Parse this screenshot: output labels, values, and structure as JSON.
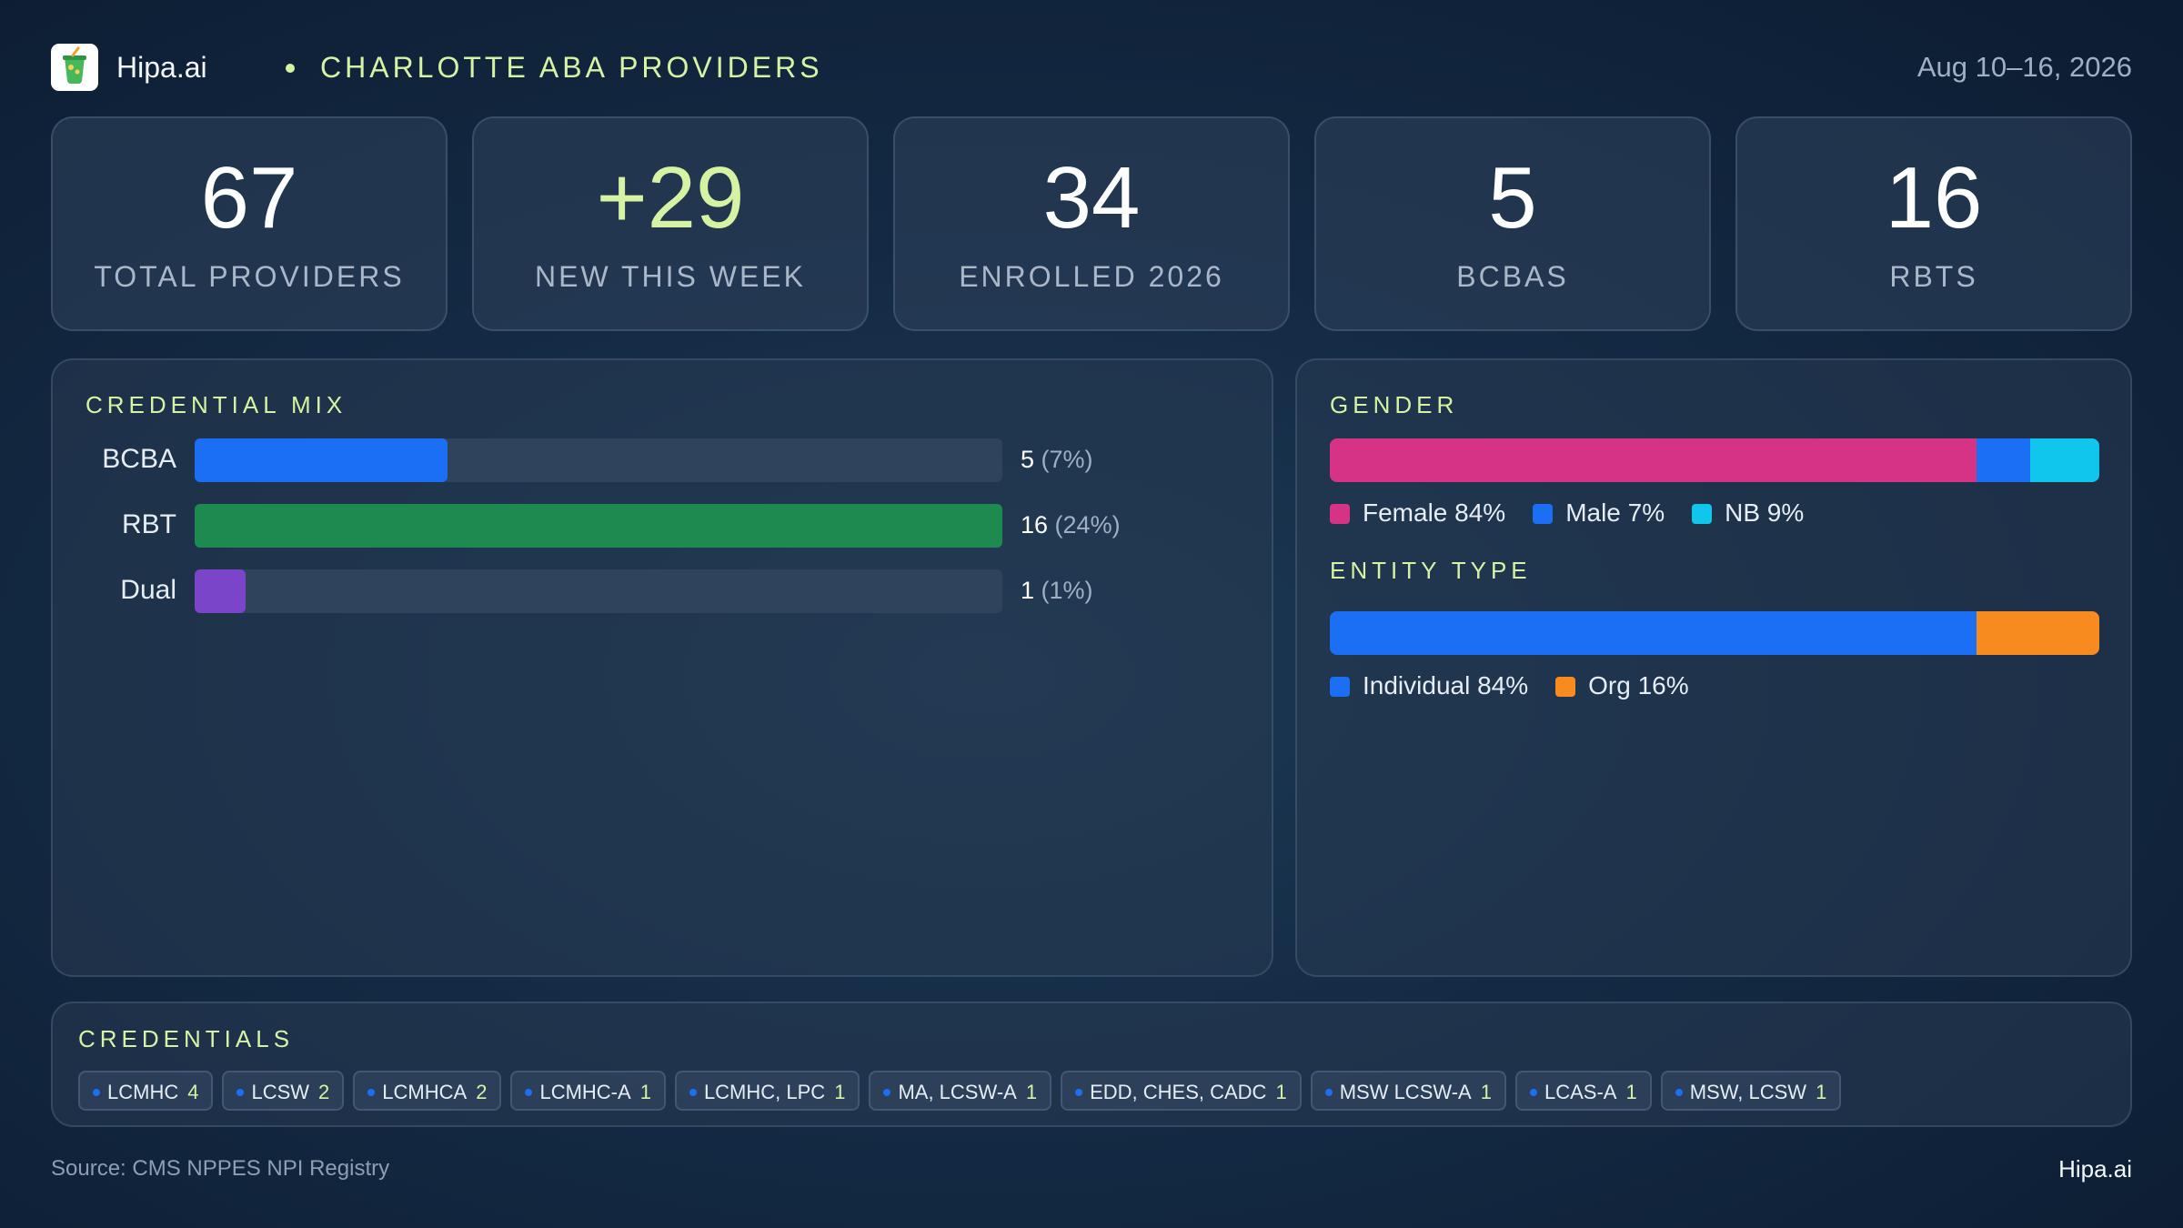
{
  "header": {
    "brand": "Hipa.ai",
    "title": "CHARLOTTE ABA PROVIDERS",
    "date_range": "Aug 10–16, 2026",
    "logo_icon": "drink-cup-icon"
  },
  "stats": [
    {
      "value": "67",
      "label": "TOTAL PROVIDERS"
    },
    {
      "value": "+29",
      "label": "NEW THIS WEEK",
      "accent": true
    },
    {
      "value": "34",
      "label": "ENROLLED 2026"
    },
    {
      "value": "5",
      "label": "BCBAS"
    },
    {
      "value": "16",
      "label": "RBTS"
    }
  ],
  "colors": {
    "accent": "#d6f3a3",
    "bcba": "#1b6ff5",
    "rbt": "#1e8a50",
    "dual": "#7a45c9",
    "female": "#d63384",
    "male": "#1b6ff5",
    "nb": "#10c6ec",
    "individual": "#1b6ff5",
    "org": "#f78b1f"
  },
  "chart_data": [
    {
      "type": "bar",
      "orientation": "horizontal",
      "title": "CREDENTIAL MIX",
      "categories": [
        "BCBA",
        "RBT",
        "Dual"
      ],
      "values": [
        5,
        16,
        1
      ],
      "value_labels": [
        "5",
        "16",
        "1"
      ],
      "pct_labels": [
        "(7%)",
        "(24%)",
        "(1%)"
      ],
      "xlim": [
        0,
        16
      ],
      "colors": [
        "#1b6ff5",
        "#1e8a50",
        "#7a45c9"
      ]
    },
    {
      "type": "bar",
      "stacked": true,
      "title": "GENDER",
      "categories": [
        "Female",
        "Male",
        "NB"
      ],
      "values": [
        84,
        7,
        9
      ],
      "legend": [
        "Female 84%",
        "Male 7%",
        "NB 9%"
      ],
      "colors": [
        "#d63384",
        "#1b6ff5",
        "#10c6ec"
      ]
    },
    {
      "type": "bar",
      "stacked": true,
      "title": "ENTITY TYPE",
      "categories": [
        "Individual",
        "Org"
      ],
      "values": [
        84,
        16
      ],
      "legend": [
        "Individual 84%",
        "Org 16%"
      ],
      "colors": [
        "#1b6ff5",
        "#f78b1f"
      ]
    }
  ],
  "credentials": {
    "title": "CREDENTIALS",
    "items": [
      {
        "name": "LCMHC",
        "count": "4"
      },
      {
        "name": "LCSW",
        "count": "2"
      },
      {
        "name": "LCMHCA",
        "count": "2"
      },
      {
        "name": "LCMHC-A",
        "count": "1"
      },
      {
        "name": "LCMHC, LPC",
        "count": "1"
      },
      {
        "name": "MA, LCSW-A",
        "count": "1"
      },
      {
        "name": "EDD, CHES, CADC",
        "count": "1"
      },
      {
        "name": "MSW LCSW-A",
        "count": "1"
      },
      {
        "name": "LCAS-A",
        "count": "1"
      },
      {
        "name": "MSW, LCSW",
        "count": "1"
      }
    ]
  },
  "footer": {
    "source": "Source: CMS NPPES NPI Registry",
    "brand": "Hipa.ai"
  }
}
